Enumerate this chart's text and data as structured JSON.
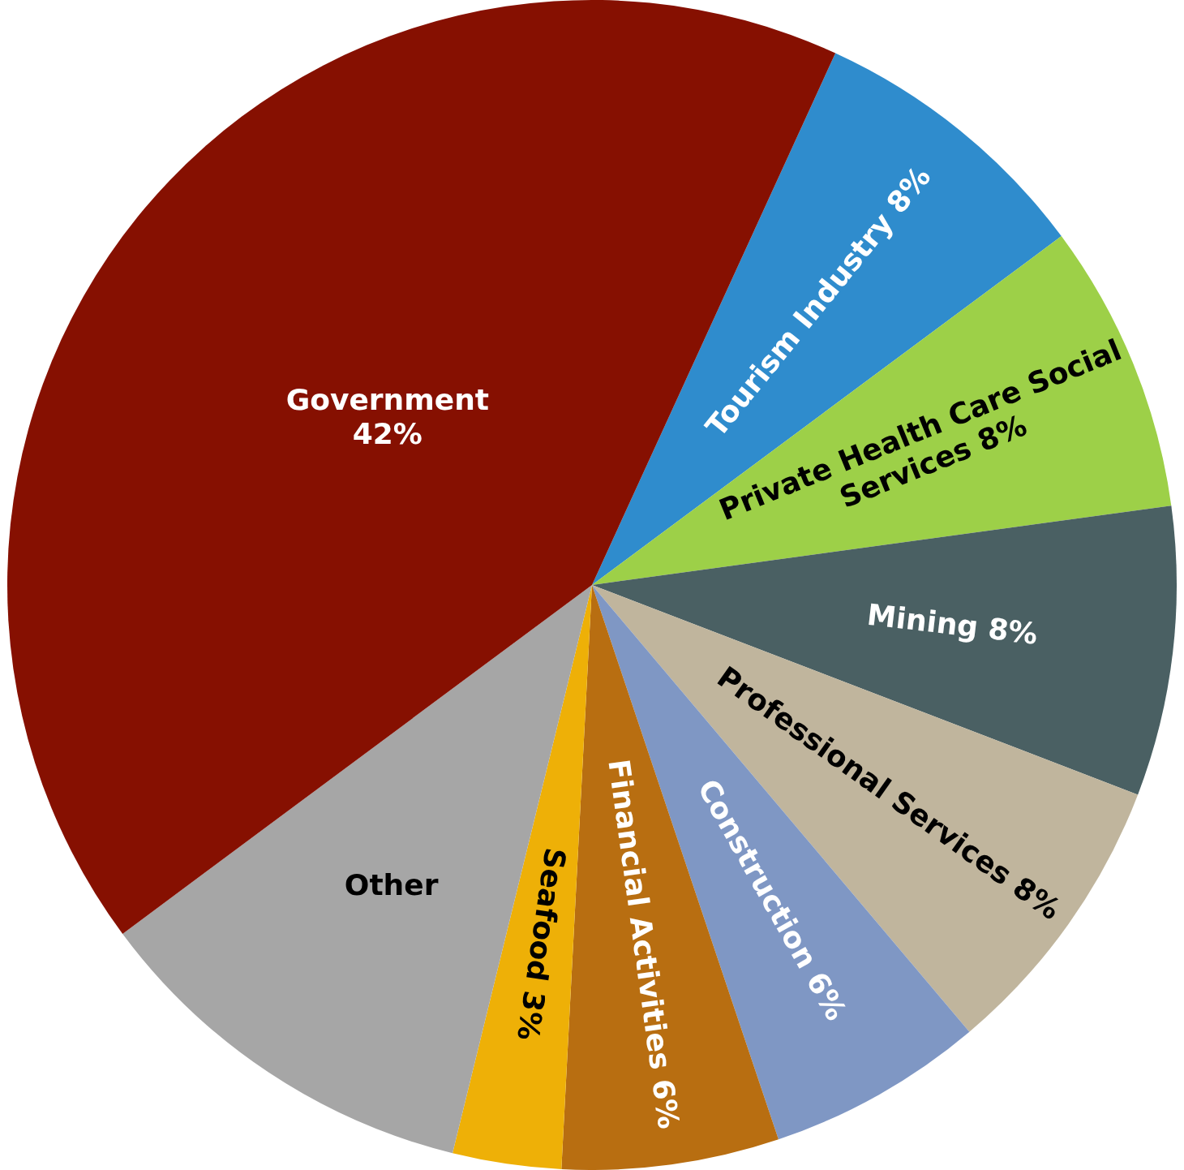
{
  "chart_data": {
    "type": "pie",
    "categories": [
      "Tourism Industry",
      "Private Health Care Social Services",
      "Mining",
      "Professional Services",
      "Construction",
      "Financial Activities",
      "Seafood",
      "Other",
      "Government"
    ],
    "values": [
      8,
      8,
      8,
      8,
      6,
      6,
      3,
      11,
      42
    ],
    "value_labels": [
      "8%",
      "8%",
      "8%",
      "8%",
      "6%",
      "6%",
      "3%",
      null,
      "42%"
    ],
    "colors": [
      "#2f8ccd",
      "#9dd048",
      "#4a6063",
      "#c0b59d",
      "#7f97c4",
      "#b86e11",
      "#eeb007",
      "#a6a6a6",
      "#861001"
    ],
    "legend": false
  }
}
